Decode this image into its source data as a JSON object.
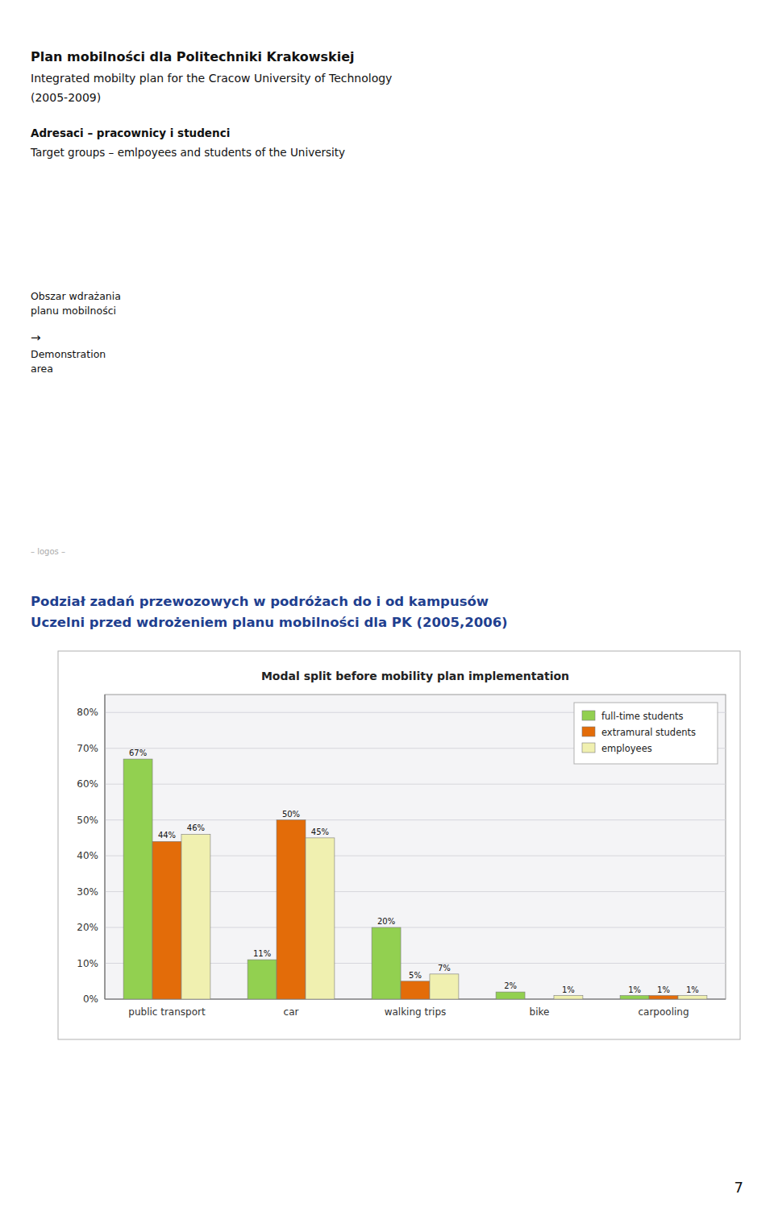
{
  "page_text": [
    "Plan mobilności dla Politechniki Krakowskiej",
    "Integrated mobilty plan for the Cracow University of Technology",
    "(2005-2009)",
    "Adresaci – pracownicy i studenci",
    "Target groups – emlpoyees and students of the University",
    "Obszar wdrażania\nplanu mobilności",
    "→",
    "Demonstration\narea",
    "– logos –",
    "Podział zadań przewozowych w podróżach do i od kampusów",
    "Uczelni przed wdrożeniem planu mobilności dla PK (2005,2006)",
    "7"
  ],
  "chart_data": {
    "type": "bar",
    "title": "Modal split before mobility plan implementation",
    "categories": [
      "public transport",
      "car",
      "walking trips",
      "bike",
      "carpooling"
    ],
    "series": [
      {
        "name": "full-time students",
        "color": "#92d050",
        "values": [
          67,
          11,
          20,
          2,
          1
        ],
        "value_labels": [
          "67%",
          "11%",
          "20%",
          "2%",
          "1%"
        ]
      },
      {
        "name": "extramural students",
        "color": "#e36c09",
        "values": [
          44,
          50,
          5,
          0,
          1
        ],
        "value_labels": [
          "44%",
          "50%",
          "5%",
          null,
          "1%"
        ]
      },
      {
        "name": "employees",
        "color": "#f0f0b0",
        "values": [
          46,
          45,
          7,
          1,
          1
        ],
        "value_labels": [
          "46%",
          "45%",
          "7%",
          "1%",
          "1%"
        ]
      }
    ],
    "ylim": [
      0,
      85
    ],
    "yticks": [
      {
        "value": 0,
        "label": "0%"
      },
      {
        "value": 10,
        "label": "10%"
      },
      {
        "value": 20,
        "label": "20%"
      },
      {
        "value": 30,
        "label": "30%"
      },
      {
        "value": 40,
        "label": "40%"
      },
      {
        "value": 50,
        "label": "50%"
      },
      {
        "value": 60,
        "label": "60%"
      },
      {
        "value": 70,
        "label": "70%"
      },
      {
        "value": 80,
        "label": "80%"
      }
    ],
    "grid": true,
    "legend": "upper right",
    "data_labels": true
  }
}
